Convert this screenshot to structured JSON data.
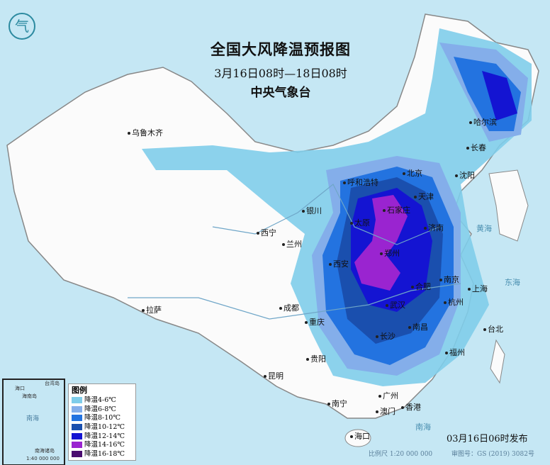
{
  "title": "全国大风降温预报图",
  "period": "3月16日08时—18日08时",
  "issuer": "中央气象台",
  "issued": "03月16日06时发布",
  "scale_text": "比例尺 1:20 000 000",
  "approval_no": "审图号：GS (2019) 3082号",
  "colors": {
    "sea": "#c5e7f4",
    "land": "#fbfbfb"
  },
  "legend": {
    "title": "图例",
    "items": [
      {
        "label": "降温4-6℃",
        "color": "#7fcdea"
      },
      {
        "label": "降温6-8℃",
        "color": "#84aeea"
      },
      {
        "label": "降温8-10℃",
        "color": "#2373e0"
      },
      {
        "label": "降温10-12℃",
        "color": "#1a4fae"
      },
      {
        "label": "降温12-14℃",
        "color": "#1414d2"
      },
      {
        "label": "降温14-16℃",
        "color": "#9a24d0"
      },
      {
        "label": "降温16-18℃",
        "color": "#4a0c70"
      }
    ]
  },
  "inset": {
    "labels": [
      "海口",
      "海南岛",
      "台湾岛",
      "南海",
      "南海诸岛",
      "1:40 000 000"
    ]
  },
  "cities": [
    "乌鲁木齐",
    "哈尔滨",
    "长春",
    "沈阳",
    "呼和浩特",
    "北京",
    "天津",
    "银川",
    "石家庄",
    "太原",
    "济南",
    "西宁",
    "兰州",
    "郑州",
    "西安",
    "南京",
    "合肥",
    "上海",
    "拉萨",
    "成都",
    "武汉",
    "杭州",
    "重庆",
    "长沙",
    "南昌",
    "贵阳",
    "福州",
    "台北",
    "昆明",
    "南宁",
    "广州",
    "澳门",
    "香港",
    "海口"
  ],
  "sea_labels": [
    "黄海",
    "东海",
    "南海"
  ]
}
